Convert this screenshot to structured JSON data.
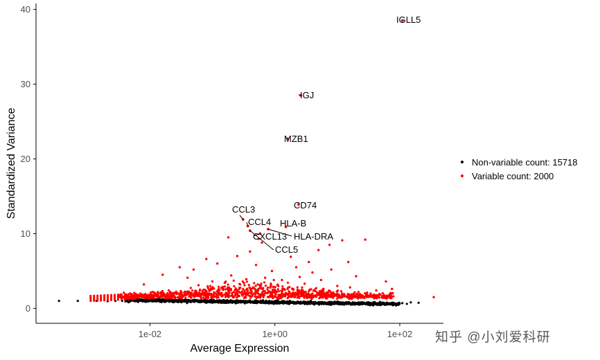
{
  "chart_data": {
    "type": "scatter",
    "xlabel": "Average Expression",
    "ylabel": "Standardized Variance",
    "x_scale": "log10",
    "xlim": [
      0.00015,
      500
    ],
    "ylim": [
      -2,
      40.8
    ],
    "x_ticks": [
      {
        "value": 0.01,
        "label": "1e-02"
      },
      {
        "value": 1,
        "label": "1e+00"
      },
      {
        "value": 100,
        "label": "1e+02"
      }
    ],
    "y_ticks": [
      {
        "value": 0,
        "label": "0"
      },
      {
        "value": 10,
        "label": "10"
      },
      {
        "value": 20,
        "label": "20"
      },
      {
        "value": 30,
        "label": "30"
      },
      {
        "value": 40,
        "label": "40"
      }
    ],
    "legend": {
      "position": "right",
      "items": [
        {
          "label": "Non-variable count: 15718",
          "color": "#000000"
        },
        {
          "label": "Variable count: 2000",
          "color": "#ff0000"
        }
      ]
    },
    "labeled_genes": [
      {
        "name": "IGLL5",
        "x": 110,
        "y": 38.5
      },
      {
        "name": "IGJ",
        "x": 2.6,
        "y": 28.5
      },
      {
        "name": "MZB1",
        "x": 1.6,
        "y": 22.7
      },
      {
        "name": "CD74",
        "x": 2.4,
        "y": 13.9
      },
      {
        "name": "CCL3",
        "x": 0.31,
        "y": 11.9
      },
      {
        "name": "CCL4",
        "x": 0.37,
        "y": 11.0
      },
      {
        "name": "HLA-B",
        "x": 1.5,
        "y": 10.9
      },
      {
        "name": "CXCL13",
        "x": 0.58,
        "y": 10.0
      },
      {
        "name": "HLA-DRA",
        "x": 0.78,
        "y": 10.6
      },
      {
        "name": "CCL5",
        "x": 0.4,
        "y": 10.4
      }
    ],
    "other_variable_points": [
      [
        0.18,
        9.5
      ],
      [
        0.55,
        9.3
      ],
      [
        28,
        9.2
      ],
      [
        12,
        9.1
      ],
      [
        7.5,
        8.5
      ],
      [
        0.62,
        8.8
      ],
      [
        5,
        7.8
      ],
      [
        0.08,
        6.6
      ],
      [
        0.25,
        7.0
      ],
      [
        0.4,
        7.6
      ],
      [
        1.8,
        6.9
      ],
      [
        3.5,
        6.2
      ],
      [
        15,
        6.2
      ],
      [
        0.12,
        6.0
      ],
      [
        0.03,
        5.5
      ],
      [
        0.5,
        5.8
      ],
      [
        2.2,
        5.5
      ],
      [
        8,
        5.2
      ],
      [
        0.05,
        5.2
      ],
      [
        0.9,
        5.0
      ],
      [
        0.016,
        4.5
      ],
      [
        4,
        4.8
      ],
      [
        0.2,
        4.4
      ],
      [
        0.7,
        4.1
      ],
      [
        20,
        4.3
      ],
      [
        0.04,
        4.1
      ],
      [
        1.3,
        3.8
      ],
      [
        0.008,
        3.2
      ],
      [
        0.1,
        3.6
      ],
      [
        0.32,
        3.4
      ],
      [
        3,
        3.3
      ],
      [
        10,
        3.0
      ],
      [
        60,
        3.6
      ],
      [
        0.6,
        3.0
      ],
      [
        0.06,
        3.1
      ],
      [
        1.1,
        3.1
      ],
      [
        0.45,
        2.8
      ],
      [
        75,
        2.6
      ],
      [
        2.8,
        2.4
      ],
      [
        0.15,
        2.6
      ],
      [
        6,
        2.2
      ],
      [
        0.02,
        2.4
      ],
      [
        30,
        2.1
      ],
      [
        350,
        1.5
      ],
      [
        70,
        1.9
      ],
      [
        0.8,
        2.2
      ],
      [
        1.6,
        2.6
      ],
      [
        0.28,
        2.1
      ],
      [
        5.5,
        3.8
      ],
      [
        16,
        2.8
      ],
      [
        0.011,
        2.2
      ],
      [
        42,
        2.4
      ],
      [
        0.35,
        3.9
      ],
      [
        2.5,
        4.2
      ]
    ]
  },
  "watermark": {
    "text": "知乎 @小刘爱科研"
  }
}
